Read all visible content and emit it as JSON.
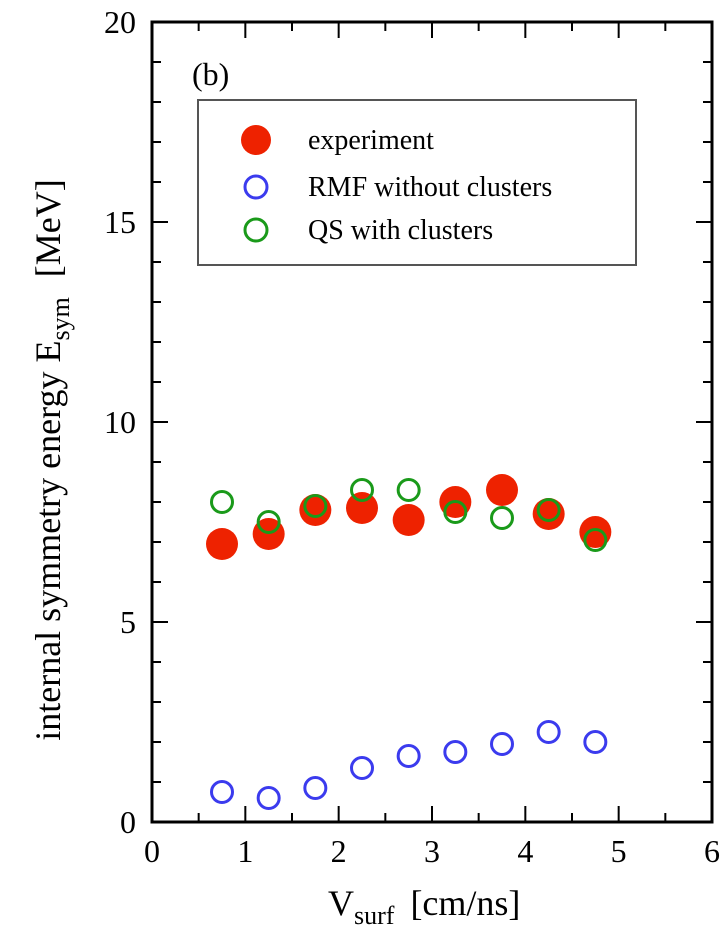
{
  "chart_data": {
    "type": "scatter",
    "panel_label": "(b)",
    "xlabel": {
      "main": "V",
      "sub": "surf",
      "unit": "[cm/ns]"
    },
    "ylabel": {
      "main": "internal symmetry energy  E",
      "sub": "sym",
      "unit": "[MeV]"
    },
    "xlim": [
      0,
      6
    ],
    "ylim": [
      0,
      20
    ],
    "x_ticks": [
      "0",
      "1",
      "2",
      "3",
      "4",
      "5",
      "6"
    ],
    "y_ticks": [
      "0",
      "5",
      "10",
      "15",
      "20"
    ],
    "grid": false,
    "legend_position": "top",
    "series": [
      {
        "name": "experiment",
        "marker": "filled-circle",
        "color": "#ee2200",
        "x": [
          0.75,
          1.25,
          1.75,
          2.25,
          2.75,
          3.25,
          3.75,
          4.25,
          4.75
        ],
        "y": [
          6.95,
          7.2,
          7.8,
          7.85,
          7.55,
          8.0,
          8.3,
          7.7,
          7.25
        ]
      },
      {
        "name": "RMF without clusters",
        "marker": "open-circle",
        "color": "#3b3bee",
        "x": [
          0.75,
          1.25,
          1.75,
          2.25,
          2.75,
          3.25,
          3.75,
          4.25,
          4.75
        ],
        "y": [
          0.75,
          0.6,
          0.85,
          1.35,
          1.65,
          1.75,
          1.95,
          2.25,
          2.0
        ]
      },
      {
        "name": "QS with clusters",
        "marker": "open-circle",
        "color": "#1a9a1a",
        "x": [
          0.75,
          1.25,
          1.75,
          2.25,
          2.75,
          3.25,
          3.75,
          4.25,
          4.75
        ],
        "y": [
          8.0,
          7.5,
          7.9,
          8.3,
          8.3,
          7.75,
          7.6,
          7.8,
          7.05
        ]
      }
    ]
  }
}
